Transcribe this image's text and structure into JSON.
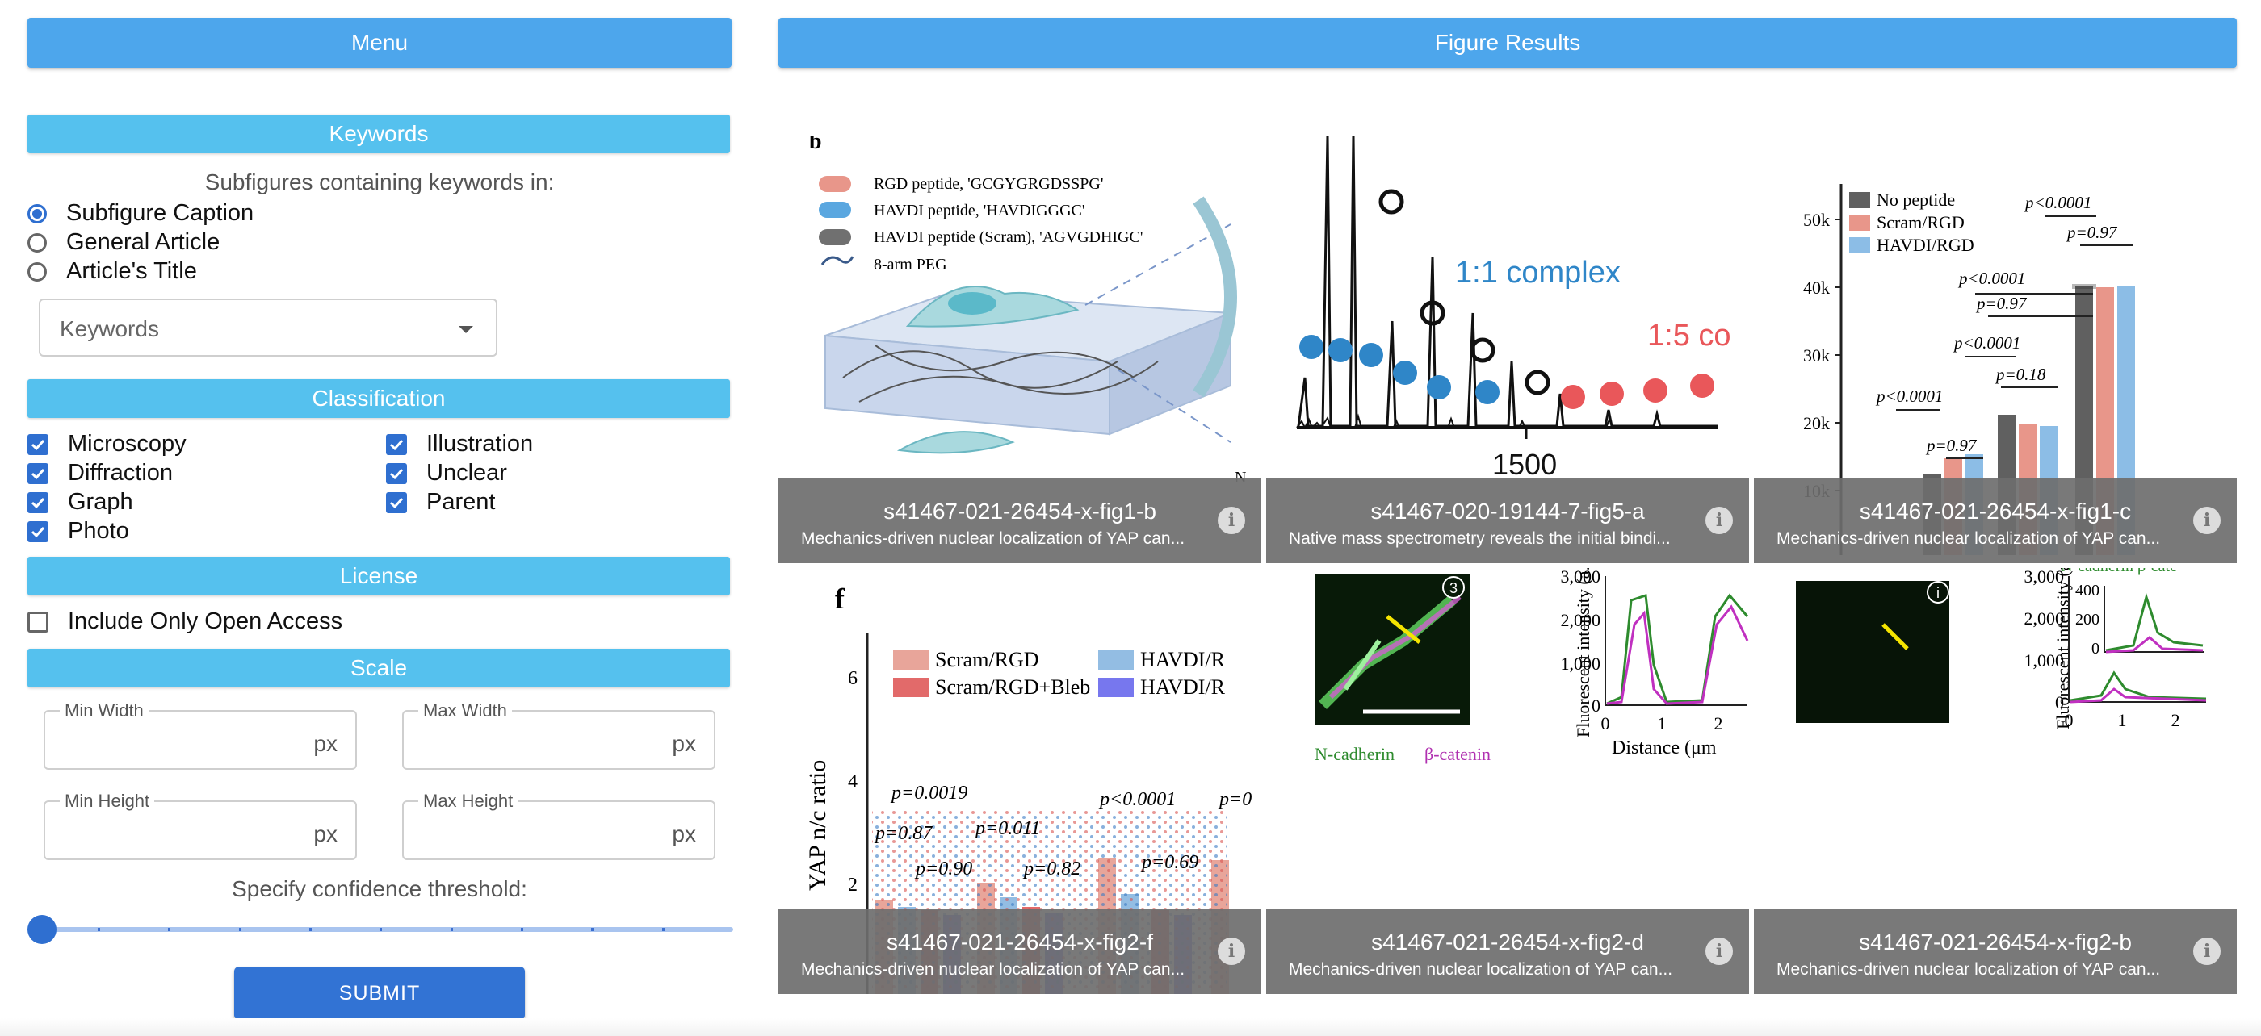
{
  "menu": {
    "title": "Menu"
  },
  "results": {
    "title": "Figure Results"
  },
  "keywords": {
    "heading": "Keywords",
    "subtitle": "Subfigures containing keywords in:",
    "options": [
      "Subfigure Caption",
      "General Article",
      "Article's Title"
    ],
    "selected": "Subfigure Caption",
    "select_placeholder": "Keywords"
  },
  "classification": {
    "heading": "Classification",
    "items": [
      {
        "label": "Microscopy",
        "checked": true
      },
      {
        "label": "Diffraction",
        "checked": true
      },
      {
        "label": "Graph",
        "checked": true
      },
      {
        "label": "Photo",
        "checked": true
      },
      {
        "label": "Illustration",
        "checked": true
      },
      {
        "label": "Unclear",
        "checked": true
      },
      {
        "label": "Parent",
        "checked": true
      }
    ]
  },
  "license": {
    "heading": "License",
    "open_access_label": "Include Only Open Access",
    "open_access_checked": false
  },
  "scale": {
    "heading": "Scale",
    "min_width": "Min Width",
    "max_width": "Max Width",
    "min_height": "Min Height",
    "max_height": "Max Height",
    "unit": "px",
    "confidence_label": "Specify confidence threshold:",
    "confidence_value": 0
  },
  "submit": {
    "label": "SUBMIT"
  },
  "figures": [
    {
      "id": "s41467-021-26454-x-fig1-b",
      "caption": "Mechanics-driven nuclear localization of YAP can...",
      "panel_letter": "b",
      "legend": [
        "RGD peptide, 'GCGYGRGDSSPG'",
        "HAVDI peptide, 'HAVDIGGGC'",
        "HAVDI peptide (Scram), 'AGVGDHIGC'",
        "8-arm PEG"
      ],
      "legend_colors": [
        "#e8968a",
        "#5aa7e0",
        "#707070",
        "#3a5a8a"
      ],
      "corner_text": "N"
    },
    {
      "id": "s41467-020-19144-7-fig5-a",
      "caption": "Native mass spectrometry reveals the initial bindi...",
      "annotation_1": "1:1 complex",
      "annotation_2": "1:5 co",
      "x_tick": "1500",
      "color_1": "#2f86c8",
      "color_2": "#e9575a"
    },
    {
      "id": "s41467-021-26454-x-fig1-c",
      "caption": "Mechanics-driven nuclear localization of YAP can...",
      "legend": [
        "No peptide",
        "Scram/RGD",
        "HAVDI/RGD"
      ],
      "legend_colors": [
        "#606060",
        "#e8968a",
        "#8cbde6"
      ],
      "y_ticks": [
        "50k",
        "40k",
        "30k",
        "20k",
        "10k"
      ],
      "pvalues": [
        "p<0.0001",
        "p=0.97",
        "p<0.0001",
        "p=0.18",
        "p<0.0001",
        "p=0.97",
        "p<0.0001",
        "p=0.97"
      ]
    },
    {
      "id": "s41467-021-26454-x-fig2-f",
      "caption": "Mechanics-driven nuclear localization of YAP can...",
      "panel_letter": "f",
      "ylabel": "YAP n/c ratio",
      "y_ticks": [
        "6",
        "4",
        "2"
      ],
      "legend": [
        "Scram/RGD",
        "Scram/RGD+Bleb",
        "HAVDI/R",
        "HAVDI/R"
      ],
      "legend_colors": [
        "#e8a59a",
        "#e26a6a",
        "#93bde3",
        "#7777ee"
      ],
      "pvalues": [
        "p=0.0019",
        "p=0.87",
        "p=0.90",
        "p=0.011",
        "p=0.82",
        "p<0.0001",
        "p=0.69",
        "p=0"
      ]
    },
    {
      "id": "s41467-021-26454-x-fig2-d",
      "caption": "Mechanics-driven nuclear localization of YAP can...",
      "badge": "3",
      "y_ticks": [
        "3,000",
        "2,000",
        "1,000",
        "0"
      ],
      "x_ticks": [
        "0",
        "1",
        "2"
      ],
      "ylabel": "Fluorescent intensity (a.u.)",
      "xlabel": "Distance (μm",
      "label_green": "N-cadherin",
      "label_magenta": "β-catenin"
    },
    {
      "id": "s41467-021-26454-x-fig2-b",
      "caption": "Mechanics-driven nuclear localization of YAP can...",
      "badge": "i",
      "y_ticks": [
        "3,000",
        "2,000",
        "1,000",
        "0"
      ],
      "inset_y_ticks": [
        "400",
        "200",
        "0"
      ],
      "x_ticks": [
        "0",
        "1",
        "2"
      ],
      "ylabel": "Fluorescent intensity (a.u.)",
      "top_text": "N-cadherin   β-cate"
    }
  ]
}
